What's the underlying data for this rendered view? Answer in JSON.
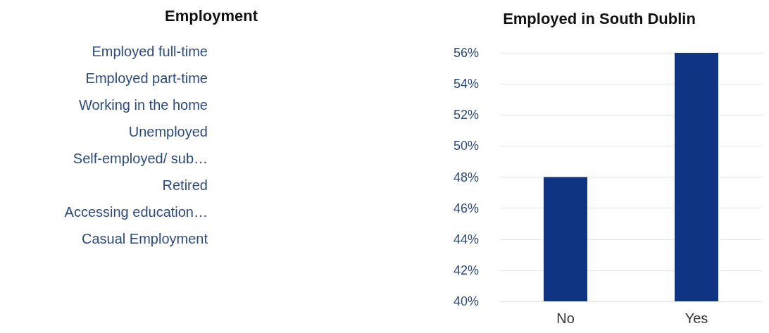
{
  "chart_data": [
    {
      "type": "other",
      "title": "Employment",
      "annotations": [
        "Employed full-time",
        "Employed part-time",
        "Working in the home",
        "Unemployed",
        "Self-employed/ sub…",
        "Retired",
        "Accessing education…",
        "Casual Employment"
      ]
    },
    {
      "type": "bar",
      "title": "Employed in South Dublin",
      "categories": [
        "No",
        "Yes"
      ],
      "values": [
        48,
        56
      ],
      "color": "#0f3483",
      "ylim": [
        40,
        56
      ],
      "yticks": [
        {
          "value": 40,
          "label": "40%"
        },
        {
          "value": 42,
          "label": "42%"
        },
        {
          "value": 44,
          "label": "44%"
        },
        {
          "value": 46,
          "label": "46%"
        },
        {
          "value": 48,
          "label": "48%"
        },
        {
          "value": 50,
          "label": "50%"
        },
        {
          "value": 52,
          "label": "52%"
        },
        {
          "value": 54,
          "label": "54%"
        },
        {
          "value": 56,
          "label": "56%"
        }
      ],
      "grid": "y"
    }
  ]
}
